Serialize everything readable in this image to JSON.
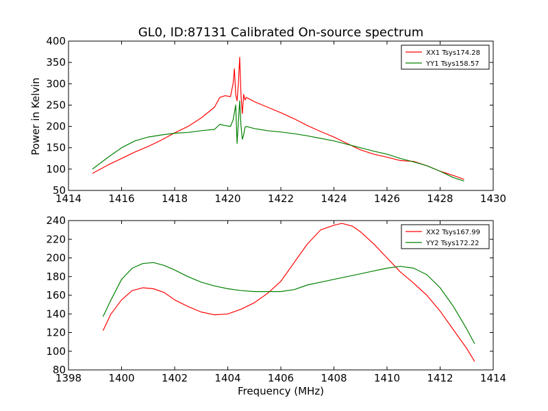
{
  "figure": {
    "title": "GL0, ID:87131 Calibrated On-source spectrum",
    "xlabel": "Frequency (MHz)",
    "ylabel": "Power in Kelvin"
  },
  "chart_data": [
    {
      "type": "line",
      "title": "GL0, ID:87131 Calibrated On-source spectrum",
      "xlabel": "",
      "ylabel": "Power in Kelvin",
      "xlim": [
        1414,
        1430
      ],
      "ylim": [
        50,
        400
      ],
      "xticks": [
        1414,
        1416,
        1418,
        1420,
        1422,
        1424,
        1426,
        1428,
        1430
      ],
      "yticks": [
        50,
        100,
        150,
        200,
        250,
        300,
        350,
        400
      ],
      "legend": "top-right",
      "series": [
        {
          "name": "XX1 Tsys174.28",
          "color": "#ff0000",
          "x": [
            1414.9,
            1415.5,
            1416.0,
            1416.5,
            1417.0,
            1417.5,
            1418.0,
            1418.5,
            1419.0,
            1419.5,
            1419.7,
            1419.9,
            1420.1,
            1420.2,
            1420.25,
            1420.3,
            1420.35,
            1420.4,
            1420.45,
            1420.5,
            1420.55,
            1420.6,
            1420.65,
            1420.7,
            1421.0,
            1421.5,
            1422.0,
            1422.5,
            1423.0,
            1423.5,
            1424.0,
            1424.5,
            1425.0,
            1425.5,
            1426.0,
            1426.5,
            1427.0,
            1427.5,
            1428.0,
            1428.5,
            1428.9
          ],
          "y": [
            90,
            110,
            125,
            140,
            153,
            168,
            185,
            200,
            220,
            245,
            268,
            272,
            270,
            300,
            335,
            275,
            260,
            300,
            362,
            270,
            230,
            275,
            262,
            268,
            258,
            245,
            232,
            218,
            202,
            188,
            175,
            160,
            145,
            135,
            128,
            120,
            118,
            108,
            95,
            85,
            76
          ]
        },
        {
          "name": "YY1 Tsys158.57",
          "color": "#008000",
          "x": [
            1414.9,
            1415.5,
            1416.0,
            1416.5,
            1417.0,
            1417.5,
            1418.0,
            1418.5,
            1419.0,
            1419.5,
            1419.7,
            1419.9,
            1420.1,
            1420.2,
            1420.3,
            1420.35,
            1420.4,
            1420.45,
            1420.5,
            1420.55,
            1420.6,
            1420.65,
            1420.7,
            1421.0,
            1421.5,
            1422.0,
            1422.5,
            1423.0,
            1423.5,
            1424.0,
            1424.5,
            1425.0,
            1425.5,
            1426.0,
            1426.5,
            1427.0,
            1427.5,
            1428.0,
            1428.5,
            1428.9
          ],
          "y": [
            100,
            128,
            150,
            166,
            175,
            180,
            184,
            186,
            190,
            193,
            205,
            202,
            200,
            215,
            250,
            160,
            210,
            260,
            200,
            170,
            180,
            198,
            200,
            195,
            190,
            187,
            183,
            178,
            172,
            166,
            158,
            150,
            142,
            135,
            125,
            117,
            108,
            95,
            80,
            72
          ]
        }
      ]
    },
    {
      "type": "line",
      "title": "",
      "xlabel": "Frequency (MHz)",
      "ylabel": "",
      "xlim": [
        1398,
        1414
      ],
      "ylim": [
        80,
        240
      ],
      "xticks": [
        1398,
        1400,
        1402,
        1404,
        1406,
        1408,
        1410,
        1412,
        1414
      ],
      "yticks": [
        80,
        100,
        120,
        140,
        160,
        180,
        200,
        220,
        240
      ],
      "legend": "top-right",
      "series": [
        {
          "name": "XX2 Tsys167.99",
          "color": "#ff0000",
          "x": [
            1399.3,
            1399.6,
            1400.0,
            1400.4,
            1400.8,
            1401.2,
            1401.6,
            1402.0,
            1402.5,
            1403.0,
            1403.5,
            1404.0,
            1404.5,
            1405.0,
            1405.5,
            1406.0,
            1406.5,
            1407.0,
            1407.5,
            1408.0,
            1408.3,
            1408.7,
            1409.0,
            1409.5,
            1410.0,
            1410.5,
            1411.0,
            1411.5,
            1412.0,
            1412.5,
            1413.0,
            1413.3
          ],
          "y": [
            122,
            140,
            155,
            165,
            168,
            167,
            163,
            155,
            148,
            142,
            139,
            140,
            145,
            152,
            162,
            175,
            195,
            215,
            230,
            235,
            237,
            234,
            228,
            215,
            200,
            185,
            173,
            160,
            143,
            123,
            103,
            89
          ]
        },
        {
          "name": "YY2 Tsys172.22",
          "color": "#008000",
          "x": [
            1399.3,
            1399.6,
            1400.0,
            1400.4,
            1400.8,
            1401.2,
            1401.6,
            1402.0,
            1402.5,
            1403.0,
            1403.5,
            1404.0,
            1404.5,
            1405.0,
            1405.5,
            1406.0,
            1406.5,
            1407.0,
            1407.5,
            1408.0,
            1408.5,
            1409.0,
            1409.5,
            1410.0,
            1410.5,
            1411.0,
            1411.5,
            1412.0,
            1412.5,
            1413.0,
            1413.3
          ],
          "y": [
            137,
            155,
            177,
            189,
            194,
            195,
            192,
            187,
            180,
            174,
            170,
            167,
            165,
            164,
            164,
            164,
            166,
            171,
            174,
            177,
            180,
            183,
            186,
            189,
            191,
            189,
            182,
            168,
            148,
            124,
            108
          ]
        }
      ]
    }
  ]
}
